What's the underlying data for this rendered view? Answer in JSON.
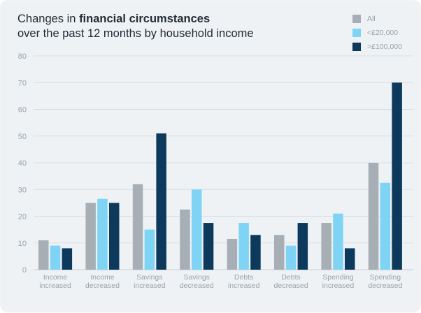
{
  "title": {
    "prefix": "Changes in ",
    "bold": "financial circumstances",
    "line2": "over the past 12 months by household income"
  },
  "colors": {
    "all": "#a7aeb5",
    "low": "#7fd4f5",
    "high": "#0d3a5c",
    "grid": "#d6dde3",
    "axis": "#c8d0d6"
  },
  "chart_data": {
    "type": "bar",
    "title": "Changes in financial circumstances over the past 12 months by household income",
    "xlabel": "",
    "ylabel": "",
    "ylim": [
      0,
      80
    ],
    "yticks": [
      0,
      10,
      20,
      30,
      40,
      50,
      60,
      70,
      80
    ],
    "grid": true,
    "legend_position": "top-right",
    "categories": [
      [
        "Income",
        "increased"
      ],
      [
        "Income",
        "decreased"
      ],
      [
        "Savings",
        "increased"
      ],
      [
        "Savings",
        "decreased"
      ],
      [
        "Debts",
        "increased"
      ],
      [
        "Debts",
        "decreased"
      ],
      [
        "Spending",
        "increased"
      ],
      [
        "Spending",
        "decreased"
      ]
    ],
    "series": [
      {
        "name": "All",
        "color": "#a7aeb5",
        "values": [
          11,
          25,
          32,
          22.5,
          11.5,
          13,
          17.5,
          40
        ]
      },
      {
        "name": "<£20,000",
        "color": "#7fd4f5",
        "values": [
          9,
          26.5,
          15,
          30,
          17.5,
          9,
          21,
          32.5
        ]
      },
      {
        "name": ">£100,000",
        "color": "#0d3a5c",
        "values": [
          8,
          25,
          51,
          17.5,
          13,
          17.5,
          8,
          70
        ]
      }
    ]
  }
}
